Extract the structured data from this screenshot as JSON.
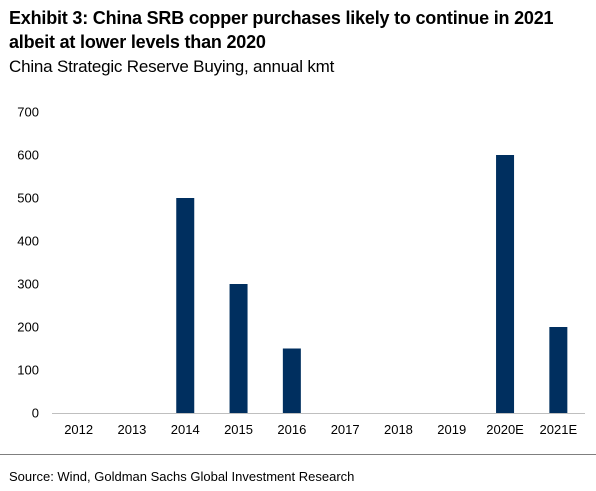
{
  "header": {
    "title": "Exhibit 3: China SRB copper purchases likely to continue in 2021 albeit at lower levels than 2020",
    "subtitle": "China Strategic Reserve Buying, annual kmt"
  },
  "footer": {
    "source": "Source: Wind, Goldman Sachs Global Investment Research"
  },
  "chart_data": {
    "type": "bar",
    "categories": [
      "2012",
      "2013",
      "2014",
      "2015",
      "2016",
      "2017",
      "2018",
      "2019",
      "2020E",
      "2021E"
    ],
    "values": [
      0,
      0,
      500,
      300,
      150,
      0,
      0,
      0,
      600,
      200
    ],
    "ylim": [
      0,
      700
    ],
    "yticks": [
      0,
      100,
      200,
      300,
      400,
      500,
      600,
      700
    ],
    "grid": false,
    "bar_color": "#002F5F",
    "axis_color": "#BFBFBF"
  }
}
